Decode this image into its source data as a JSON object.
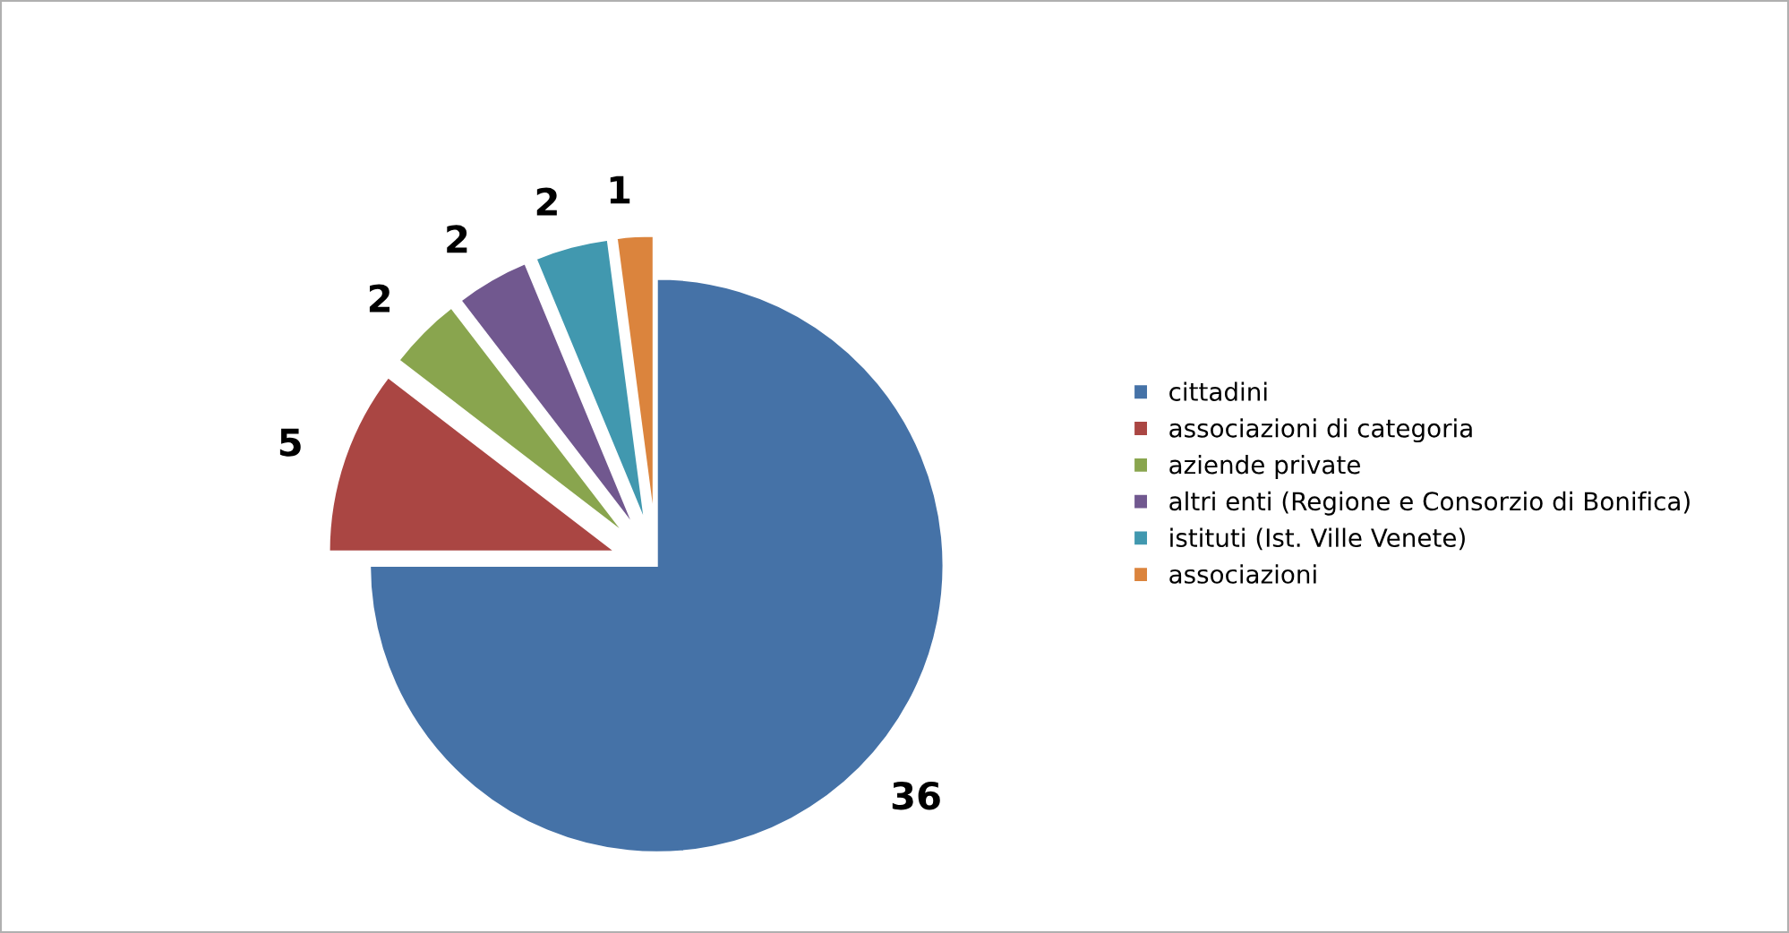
{
  "chart_data": {
    "type": "pie",
    "categories": [
      "cittadini",
      "associazioni di categoria",
      "aziende private",
      "altri enti (Regione e Consorzio di Bonifica)",
      "istituti (Ist. Ville Venete)",
      "associazioni"
    ],
    "values": [
      36,
      5,
      2,
      2,
      2,
      1
    ],
    "colors": [
      "#4572a7",
      "#aa4643",
      "#89a54e",
      "#71588f",
      "#4198af",
      "#db843d"
    ],
    "data_labels": true,
    "legend": "right"
  }
}
